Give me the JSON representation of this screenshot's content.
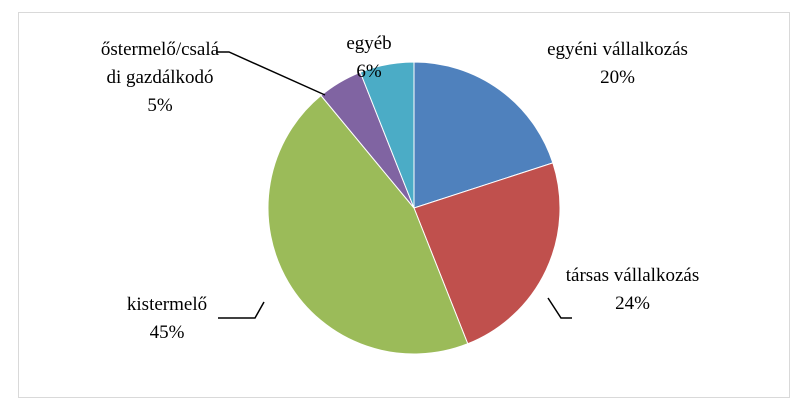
{
  "chart_data": {
    "type": "pie",
    "categories": [
      "egyéni vállalkozás",
      "társas vállalkozás",
      "kistermelő",
      "őstermelő/családi gazdálkodó",
      "egyéb"
    ],
    "values": [
      20,
      24,
      45,
      5,
      6
    ],
    "value_labels": [
      "20%",
      "24%",
      "45%",
      "5%",
      "6%"
    ],
    "colors": [
      "#4f81bd",
      "#c0504d",
      "#9bbb59",
      "#8064a2",
      "#4bacc6"
    ]
  }
}
